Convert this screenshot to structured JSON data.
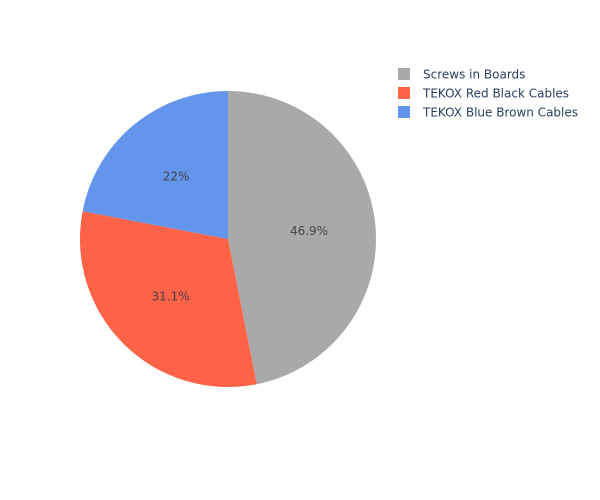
{
  "chart_data": {
    "type": "pie",
    "title": "",
    "labels": [
      "Screws in Boards",
      "TEKOX Red Black Cables",
      "TEKOX Blue Brown Cables"
    ],
    "values": [
      46.9,
      31.1,
      22.0
    ],
    "value_labels": [
      "46.9%",
      "31.1%",
      "22%"
    ],
    "colors": [
      "#a9a9a9",
      "#ff6347",
      "#6495ed"
    ],
    "direction": "clockwise",
    "legend_position": "top-right",
    "legend": [
      {
        "name": "Screws in Boards",
        "color": "#a9a9a9"
      },
      {
        "name": "TEKOX Red Black Cables",
        "color": "#ff6347"
      },
      {
        "name": "TEKOX Blue Brown Cables",
        "color": "#6495ed"
      }
    ]
  }
}
